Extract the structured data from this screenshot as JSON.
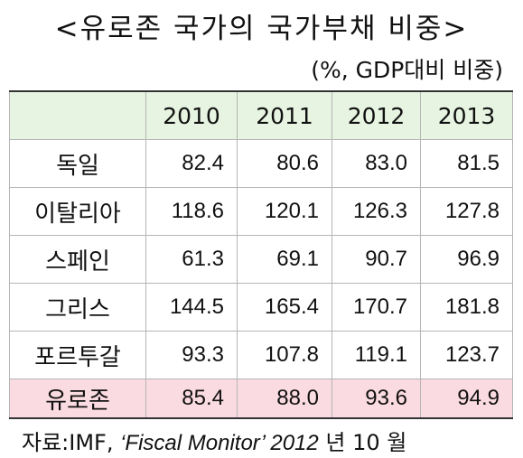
{
  "title": "<유로존 국가의 국가부채 비중>",
  "unit": "(%, GDP대비 비중)",
  "table": {
    "corner": "",
    "years": [
      "2010",
      "2011",
      "2012",
      "2013"
    ],
    "rows": [
      {
        "country": "독일",
        "values": [
          "82.4",
          "80.6",
          "83.0",
          "81.5"
        ]
      },
      {
        "country": "이탈리아",
        "values": [
          "118.6",
          "120.1",
          "126.3",
          "127.8"
        ]
      },
      {
        "country": "스페인",
        "values": [
          "61.3",
          "69.1",
          "90.7",
          "96.9"
        ]
      },
      {
        "country": "그리스",
        "values": [
          "144.5",
          "165.4",
          "170.7",
          "181.8"
        ]
      },
      {
        "country": "포르투갈",
        "values": [
          "93.3",
          "107.8",
          "119.1",
          "123.7"
        ]
      },
      {
        "country": "유로존",
        "values": [
          "85.4",
          "88.0",
          "93.6",
          "94.9"
        ]
      }
    ]
  },
  "source": {
    "prefix": "자료:IMF, ",
    "publication": "‘Fiscal Monitor’ 2012",
    "suffix": " 년 10 월"
  },
  "colors": {
    "header_bg": "#e6f4e1",
    "highlight_row_bg": "#fbdbe2"
  }
}
